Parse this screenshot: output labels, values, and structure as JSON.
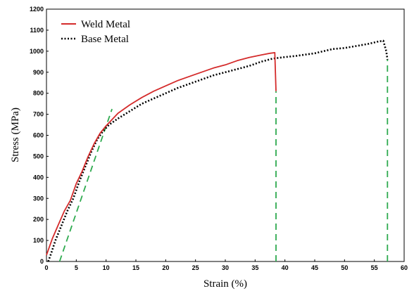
{
  "chart_data": {
    "type": "line",
    "xlabel": "Strain (%)",
    "ylabel": "Stress (MPa)",
    "xlim": [
      0,
      60
    ],
    "ylim": [
      0,
      1200
    ],
    "xticks": [
      0,
      5,
      10,
      15,
      20,
      25,
      30,
      35,
      40,
      45,
      50,
      55,
      60
    ],
    "yticks": [
      0,
      100,
      200,
      300,
      400,
      500,
      600,
      700,
      800,
      900,
      1000,
      1100,
      1200
    ],
    "grid": false,
    "legend": "top-left",
    "series": [
      {
        "name": "Weld Metal",
        "style": "solid",
        "color": "#d42b2b",
        "points": [
          [
            0,
            30
          ],
          [
            0.5,
            70
          ],
          [
            1,
            110
          ],
          [
            2,
            175
          ],
          [
            3,
            240
          ],
          [
            4,
            290
          ],
          [
            5,
            370
          ],
          [
            6,
            430
          ],
          [
            7,
            500
          ],
          [
            8,
            560
          ],
          [
            9,
            610
          ],
          [
            10,
            645
          ],
          [
            11,
            675
          ],
          [
            12,
            705
          ],
          [
            14,
            745
          ],
          [
            16,
            780
          ],
          [
            18,
            810
          ],
          [
            20,
            835
          ],
          [
            22,
            860
          ],
          [
            25,
            890
          ],
          [
            28,
            920
          ],
          [
            30,
            935
          ],
          [
            32,
            955
          ],
          [
            34,
            970
          ],
          [
            36,
            982
          ],
          [
            37.5,
            990
          ],
          [
            38.3,
            993
          ],
          [
            38.5,
            810
          ]
        ]
      },
      {
        "name": "Base Metal",
        "style": "dotted",
        "color": "#000000",
        "points": [
          [
            0.3,
            0
          ],
          [
            0.8,
            40
          ],
          [
            1.5,
            100
          ],
          [
            2.5,
            170
          ],
          [
            3.5,
            240
          ],
          [
            4.5,
            300
          ],
          [
            5.5,
            380
          ],
          [
            6.5,
            450
          ],
          [
            7.5,
            520
          ],
          [
            8.5,
            580
          ],
          [
            9.5,
            620
          ],
          [
            10.5,
            650
          ],
          [
            12,
            680
          ],
          [
            14,
            715
          ],
          [
            16,
            750
          ],
          [
            18,
            775
          ],
          [
            20,
            800
          ],
          [
            22,
            825
          ],
          [
            25,
            855
          ],
          [
            28,
            885
          ],
          [
            30,
            900
          ],
          [
            32,
            915
          ],
          [
            34,
            930
          ],
          [
            36,
            950
          ],
          [
            38,
            965
          ],
          [
            40,
            972
          ],
          [
            42,
            978
          ],
          [
            45,
            990
          ],
          [
            48,
            1010
          ],
          [
            50,
            1015
          ],
          [
            52,
            1025
          ],
          [
            54,
            1035
          ],
          [
            55.5,
            1045
          ],
          [
            56.5,
            1050
          ],
          [
            57,
            1000
          ],
          [
            57.2,
            960
          ]
        ]
      },
      {
        "name": "",
        "style": "dashed",
        "color": "#2eaa4f",
        "points": [
          [
            2.2,
            0
          ],
          [
            11,
            725
          ]
        ]
      },
      {
        "name": "",
        "style": "dashed",
        "color": "#2eaa4f",
        "points": [
          [
            38.5,
            0
          ],
          [
            38.5,
            810
          ]
        ]
      },
      {
        "name": "",
        "style": "dashed",
        "color": "#2eaa4f",
        "points": [
          [
            57.2,
            0
          ],
          [
            57.2,
            960
          ]
        ]
      }
    ]
  }
}
